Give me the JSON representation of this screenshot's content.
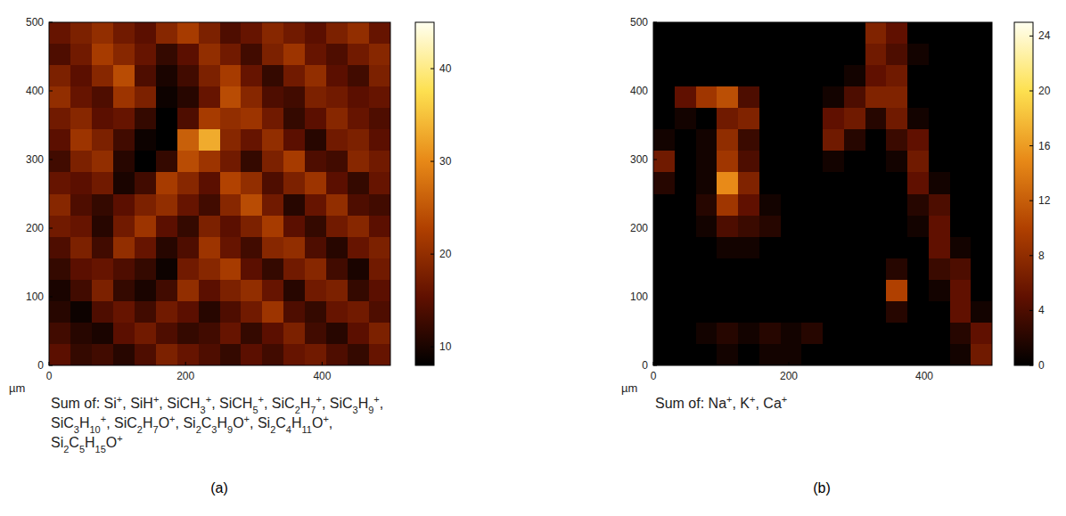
{
  "chart_data": [
    {
      "type": "heatmap",
      "panel": "(a)",
      "caption": "Sum of: Si+, SiH+, SiCH3+, SiCH5+, SiC2H7+, SiC3H9+, SiC3H10+, SiC2H7O+, Si2C3H9O+, Si2C4H11O+, Si2C5H15O+",
      "xlabel": "µm",
      "xlim": [
        0,
        500
      ],
      "ylim": [
        0,
        500
      ],
      "xticks": [
        0,
        200,
        400
      ],
      "yticks": [
        0,
        100,
        200,
        300,
        400,
        500
      ],
      "colorbar_range": [
        8,
        45
      ],
      "colorbar_ticks": [
        10,
        20,
        30,
        40
      ],
      "cells": [
        [
          16,
          18,
          20,
          17,
          15,
          19,
          22,
          18,
          14,
          16,
          19,
          17,
          15,
          18,
          20,
          16
        ],
        [
          14,
          17,
          22,
          19,
          16,
          12,
          15,
          20,
          17,
          13,
          18,
          21,
          16,
          14,
          17,
          19
        ],
        [
          18,
          15,
          19,
          24,
          14,
          10,
          13,
          18,
          22,
          16,
          12,
          17,
          20,
          15,
          13,
          18
        ],
        [
          20,
          16,
          14,
          21,
          18,
          9,
          11,
          16,
          24,
          19,
          14,
          13,
          18,
          17,
          15,
          16
        ],
        [
          17,
          19,
          15,
          16,
          12,
          7,
          14,
          22,
          20,
          21,
          17,
          12,
          15,
          19,
          16,
          14
        ],
        [
          15,
          21,
          18,
          13,
          9,
          8,
          26,
          33,
          19,
          16,
          20,
          15,
          11,
          17,
          18,
          15
        ],
        [
          13,
          18,
          20,
          11,
          8,
          12,
          24,
          21,
          17,
          12,
          18,
          22,
          14,
          13,
          19,
          17
        ],
        [
          16,
          15,
          17,
          10,
          13,
          22,
          19,
          15,
          23,
          20,
          14,
          18,
          21,
          15,
          12,
          16
        ],
        [
          19,
          14,
          12,
          15,
          18,
          20,
          16,
          13,
          19,
          24,
          17,
          11,
          16,
          20,
          14,
          13
        ],
        [
          17,
          16,
          11,
          17,
          21,
          15,
          12,
          18,
          15,
          18,
          22,
          15,
          12,
          17,
          19,
          15
        ],
        [
          14,
          18,
          13,
          20,
          16,
          11,
          14,
          21,
          16,
          13,
          19,
          20,
          14,
          11,
          16,
          18
        ],
        [
          12,
          15,
          16,
          14,
          12,
          9,
          17,
          19,
          22,
          15,
          12,
          17,
          19,
          13,
          10,
          17
        ],
        [
          10,
          13,
          18,
          12,
          10,
          13,
          20,
          15,
          18,
          20,
          16,
          11,
          17,
          18,
          12,
          15
        ],
        [
          11,
          9,
          14,
          16,
          13,
          17,
          15,
          11,
          14,
          17,
          21,
          14,
          12,
          16,
          17,
          14
        ],
        [
          13,
          11,
          10,
          15,
          17,
          14,
          12,
          13,
          16,
          12,
          15,
          18,
          13,
          11,
          15,
          18
        ],
        [
          15,
          12,
          13,
          11,
          14,
          18,
          16,
          14,
          12,
          15,
          13,
          16,
          17,
          14,
          12,
          16
        ]
      ]
    },
    {
      "type": "heatmap",
      "panel": "(b)",
      "caption": "Sum of: Na+, K+, Ca+",
      "xlabel": "µm",
      "xlim": [
        0,
        500
      ],
      "ylim": [
        0,
        500
      ],
      "xticks": [
        0,
        200,
        400
      ],
      "yticks": [
        0,
        100,
        200,
        300,
        400,
        500
      ],
      "colorbar_range": [
        0,
        25
      ],
      "colorbar_ticks": [
        0,
        4,
        8,
        12,
        16,
        20,
        24
      ],
      "cells": [
        [
          0,
          0,
          0,
          0,
          0,
          0,
          0,
          0,
          0,
          0,
          7,
          5,
          0,
          0,
          0,
          0
        ],
        [
          0,
          0,
          0,
          0,
          0,
          0,
          0,
          0,
          0,
          0,
          6,
          4,
          1,
          0,
          0,
          0
        ],
        [
          0,
          0,
          0,
          0,
          0,
          0,
          0,
          0,
          0,
          1,
          5,
          6,
          0,
          0,
          0,
          0
        ],
        [
          0,
          5,
          9,
          11,
          4,
          0,
          0,
          0,
          1,
          4,
          7,
          7,
          0,
          0,
          0,
          0
        ],
        [
          0,
          1,
          0,
          6,
          7,
          0,
          0,
          0,
          5,
          6,
          2,
          6,
          1,
          0,
          0,
          0
        ],
        [
          1,
          0,
          1,
          8,
          3,
          0,
          0,
          0,
          6,
          2,
          0,
          3,
          5,
          0,
          0,
          0
        ],
        [
          6,
          0,
          1,
          9,
          4,
          0,
          0,
          0,
          1,
          0,
          0,
          1,
          6,
          0,
          0,
          0
        ],
        [
          2,
          0,
          1,
          15,
          7,
          0,
          0,
          0,
          0,
          0,
          0,
          0,
          5,
          1,
          0,
          0
        ],
        [
          0,
          0,
          2,
          9,
          5,
          1,
          0,
          0,
          0,
          0,
          0,
          0,
          2,
          4,
          0,
          0
        ],
        [
          0,
          0,
          1,
          4,
          3,
          2,
          0,
          0,
          0,
          0,
          0,
          0,
          1,
          5,
          0,
          0
        ],
        [
          0,
          0,
          0,
          1,
          1,
          0,
          0,
          0,
          0,
          0,
          0,
          0,
          0,
          5,
          1,
          0
        ],
        [
          0,
          0,
          0,
          0,
          0,
          0,
          0,
          0,
          0,
          0,
          0,
          2,
          0,
          3,
          4,
          0
        ],
        [
          0,
          0,
          0,
          0,
          0,
          0,
          0,
          0,
          0,
          0,
          0,
          10,
          0,
          1,
          5,
          0
        ],
        [
          0,
          0,
          0,
          0,
          0,
          0,
          0,
          0,
          0,
          0,
          0,
          2,
          0,
          0,
          5,
          1
        ],
        [
          0,
          0,
          1,
          2,
          1,
          2,
          1,
          2,
          0,
          0,
          0,
          0,
          0,
          0,
          2,
          5
        ],
        [
          0,
          0,
          0,
          1,
          0,
          1,
          1,
          0,
          0,
          0,
          0,
          0,
          0,
          0,
          1,
          6
        ]
      ]
    }
  ]
}
